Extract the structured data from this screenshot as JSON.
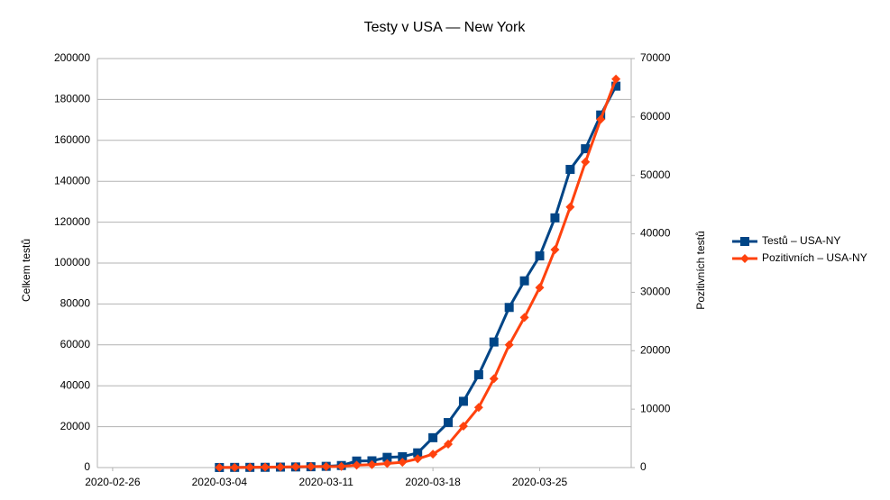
{
  "chart_data": {
    "type": "line",
    "title": "Testy v USA — New York",
    "ylabel": "Celkem testů",
    "y2label": "Pozitivních testů",
    "x": [
      "2020-03-04",
      "2020-03-05",
      "2020-03-06",
      "2020-03-07",
      "2020-03-08",
      "2020-03-09",
      "2020-03-10",
      "2020-03-11",
      "2020-03-12",
      "2020-03-13",
      "2020-03-14",
      "2020-03-15",
      "2020-03-16",
      "2020-03-17",
      "2020-03-18",
      "2020-03-19",
      "2020-03-20",
      "2020-03-21",
      "2020-03-22",
      "2020-03-23",
      "2020-03-24",
      "2020-03-25",
      "2020-03-26",
      "2020-03-27",
      "2020-03-28",
      "2020-03-29",
      "2020-03-30"
    ],
    "xlim": [
      "2020-02-25",
      "2020-03-31"
    ],
    "xticks": [
      "2020-02-26",
      "2020-03-04",
      "2020-03-11",
      "2020-03-18",
      "2020-03-25"
    ],
    "ylim": [
      0,
      200000
    ],
    "yticks": [
      0,
      20000,
      40000,
      60000,
      80000,
      100000,
      120000,
      140000,
      160000,
      180000,
      200000
    ],
    "y2lim": [
      0,
      70000
    ],
    "y2ticks": [
      0,
      10000,
      20000,
      30000,
      40000,
      50000,
      60000,
      70000
    ],
    "grid": true,
    "legend": "right",
    "series": [
      {
        "name": "Testů – USA-NY",
        "color": "#004586",
        "marker": "square",
        "values": [
          30,
          80,
          90,
          120,
          220,
          300,
          400,
          600,
          1000,
          3200,
          3300,
          5000,
          5300,
          7200,
          14600,
          22000,
          32400,
          45400,
          61400,
          78300,
          91300,
          103500,
          122100,
          145800,
          155900,
          172400,
          186500
        ]
      },
      {
        "name": "Pozitivních – USA-NY",
        "color": "#ff420e",
        "marker": "diamond",
        "axis": "y2",
        "values": [
          10,
          20,
          30,
          70,
          100,
          140,
          170,
          180,
          200,
          400,
          500,
          700,
          900,
          1500,
          2300,
          4000,
          7100,
          10300,
          15200,
          21000,
          25700,
          30800,
          37300,
          44600,
          52300,
          59600,
          66500
        ]
      }
    ]
  }
}
